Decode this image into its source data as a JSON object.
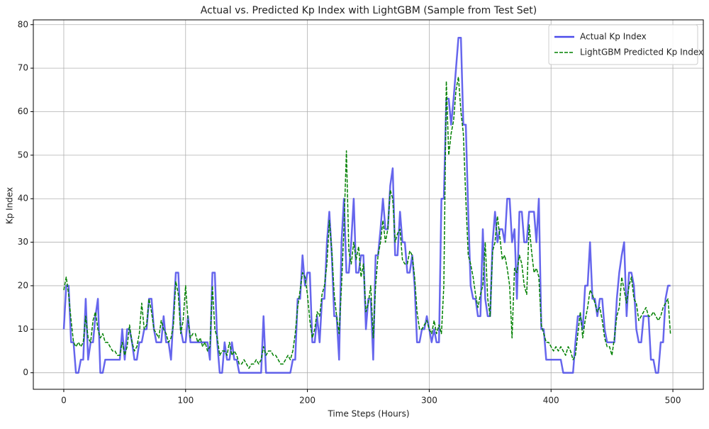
{
  "chart_data": {
    "type": "line",
    "title": "Actual vs. Predicted Kp Index with LightGBM (Sample from Test Set)",
    "x_label": "Time Steps (Hours)",
    "y_label": "Kp Index",
    "x": [
      0,
      2,
      4,
      6,
      8,
      10,
      12,
      14,
      16,
      18,
      20,
      22,
      24,
      26,
      28,
      30,
      32,
      34,
      36,
      38,
      40,
      42,
      44,
      46,
      48,
      50,
      52,
      54,
      56,
      58,
      60,
      62,
      64,
      66,
      68,
      70,
      72,
      74,
      76,
      78,
      80,
      82,
      84,
      86,
      88,
      90,
      92,
      94,
      96,
      98,
      100,
      102,
      104,
      106,
      108,
      110,
      112,
      114,
      116,
      118,
      120,
      122,
      124,
      126,
      128,
      130,
      132,
      134,
      136,
      138,
      140,
      142,
      144,
      146,
      148,
      150,
      152,
      154,
      156,
      158,
      160,
      162,
      164,
      166,
      168,
      170,
      172,
      174,
      176,
      178,
      180,
      182,
      184,
      186,
      188,
      190,
      192,
      194,
      196,
      198,
      200,
      202,
      204,
      206,
      208,
      210,
      212,
      214,
      216,
      218,
      220,
      222,
      224,
      226,
      228,
      230,
      232,
      234,
      236,
      238,
      240,
      242,
      244,
      246,
      248,
      250,
      252,
      254,
      256,
      258,
      260,
      262,
      264,
      266,
      268,
      270,
      272,
      274,
      276,
      278,
      280,
      282,
      284,
      286,
      288,
      290,
      292,
      294,
      296,
      298,
      300,
      302,
      304,
      306,
      308,
      310,
      312,
      314,
      316,
      318,
      320,
      322,
      324,
      326,
      328,
      330,
      332,
      334,
      336,
      338,
      340,
      342,
      344,
      346,
      348,
      350,
      352,
      354,
      356,
      358,
      360,
      362,
      364,
      366,
      368,
      370,
      372,
      374,
      376,
      378,
      380,
      382,
      384,
      386,
      388,
      390,
      392,
      394,
      396,
      398,
      400,
      402,
      404,
      406,
      408,
      410,
      412,
      414,
      416,
      418,
      420,
      422,
      424,
      426,
      428,
      430,
      432,
      434,
      436,
      438,
      440,
      442,
      444,
      446,
      448,
      450,
      452,
      454,
      456,
      458,
      460,
      462,
      464,
      466,
      468,
      470,
      472,
      474,
      476,
      478,
      480,
      482,
      484,
      486,
      488,
      490,
      492,
      494,
      496,
      498
    ],
    "series": [
      {
        "name": "Actual Kp Index",
        "color": "#4b4bea",
        "style": "solid",
        "values": [
          10,
          20,
          20,
          7,
          7,
          0,
          0,
          3,
          3,
          17,
          3,
          7,
          7,
          13,
          17,
          0,
          0,
          3,
          3,
          3,
          3,
          3,
          3,
          3,
          10,
          3,
          10,
          10,
          7,
          3,
          3,
          7,
          7,
          10,
          10,
          17,
          17,
          10,
          7,
          7,
          7,
          13,
          7,
          7,
          3,
          13,
          23,
          23,
          10,
          7,
          7,
          13,
          7,
          7,
          7,
          7,
          7,
          7,
          7,
          7,
          3,
          23,
          23,
          7,
          0,
          0,
          7,
          3,
          3,
          7,
          3,
          3,
          0,
          0,
          0,
          0,
          0,
          0,
          0,
          0,
          0,
          0,
          13,
          0,
          0,
          0,
          0,
          0,
          0,
          0,
          0,
          0,
          0,
          0,
          3,
          3,
          17,
          17,
          27,
          20,
          23,
          23,
          7,
          7,
          13,
          7,
          17,
          17,
          30,
          37,
          27,
          13,
          13,
          3,
          30,
          40,
          23,
          23,
          30,
          40,
          23,
          23,
          27,
          27,
          10,
          17,
          17,
          3,
          27,
          27,
          33,
          40,
          33,
          33,
          43,
          47,
          27,
          27,
          37,
          30,
          30,
          23,
          23,
          27,
          20,
          7,
          7,
          10,
          10,
          13,
          10,
          7,
          10,
          7,
          7,
          40,
          40,
          63,
          63,
          57,
          63,
          70,
          77,
          77,
          57,
          57,
          37,
          20,
          17,
          17,
          13,
          13,
          33,
          17,
          13,
          13,
          30,
          37,
          30,
          33,
          33,
          30,
          40,
          40,
          30,
          33,
          17,
          37,
          37,
          30,
          30,
          37,
          37,
          37,
          30,
          40,
          10,
          10,
          3,
          3,
          3,
          3,
          3,
          3,
          3,
          0,
          0,
          0,
          0,
          0,
          7,
          13,
          13,
          10,
          20,
          20,
          30,
          17,
          17,
          13,
          17,
          17,
          10,
          7,
          7,
          7,
          7,
          17,
          23,
          27,
          30,
          13,
          23,
          23,
          20,
          10,
          7,
          7,
          13,
          13,
          13,
          3,
          3,
          0,
          0,
          7,
          7,
          17,
          20,
          20
        ]
      },
      {
        "name": "LightGBM Predicted Kp Index",
        "color": "#008000",
        "style": "dashed",
        "values": [
          19,
          22,
          18,
          12,
          7,
          6,
          7,
          6,
          7,
          13,
          8,
          7,
          12,
          14,
          10,
          8,
          9,
          7,
          7,
          6,
          5,
          5,
          4,
          4,
          7,
          4,
          6,
          11,
          7,
          5,
          6,
          9,
          16,
          10,
          11,
          17,
          14,
          10,
          9,
          8,
          12,
          10,
          9,
          7,
          8,
          11,
          21,
          18,
          9,
          12,
          20,
          12,
          8,
          9,
          9,
          7,
          8,
          6,
          7,
          5,
          6,
          20,
          10,
          8,
          4,
          5,
          5,
          4,
          7,
          4,
          5,
          4,
          2,
          2,
          3,
          2,
          1,
          2,
          2,
          3,
          2,
          3,
          6,
          4,
          5,
          5,
          4,
          4,
          3,
          2,
          2,
          3,
          4,
          3,
          5,
          9,
          15,
          19,
          23,
          22,
          18,
          12,
          8,
          10,
          14,
          13,
          18,
          20,
          25,
          35,
          28,
          18,
          13,
          9,
          20,
          33,
          51,
          28,
          25,
          30,
          26,
          29,
          22,
          25,
          14,
          16,
          20,
          8,
          20,
          27,
          30,
          35,
          30,
          33,
          42,
          40,
          30,
          32,
          33,
          26,
          25,
          25,
          28,
          27,
          22,
          14,
          10,
          10,
          11,
          12,
          10,
          9,
          12,
          9,
          11,
          9,
          20,
          67,
          50,
          55,
          58,
          65,
          68,
          60,
          55,
          40,
          27,
          25,
          22,
          18,
          15,
          18,
          20,
          30,
          17,
          13,
          28,
          30,
          36,
          31,
          26,
          27,
          24,
          20,
          8,
          24,
          23,
          27,
          25,
          20,
          18,
          34,
          28,
          23,
          24,
          22,
          11,
          9,
          7,
          7,
          6,
          5,
          6,
          5,
          6,
          5,
          4,
          6,
          5,
          3,
          4,
          9,
          14,
          8,
          12,
          15,
          19,
          18,
          16,
          14,
          15,
          12,
          8,
          6,
          6,
          4,
          8,
          13,
          15,
          22,
          19,
          16,
          20,
          22,
          17,
          16,
          12,
          13,
          14,
          15,
          13,
          13,
          14,
          13,
          12,
          13,
          15,
          16,
          17,
          9
        ]
      }
    ],
    "xlim": [
      -25,
      525
    ],
    "ylim": [
      -3.8,
      81.1
    ],
    "xticks": [
      0,
      100,
      200,
      300,
      400,
      500
    ],
    "yticks": [
      0,
      10,
      20,
      30,
      40,
      50,
      60,
      70,
      80
    ],
    "grid": true,
    "legend": "upper right"
  }
}
